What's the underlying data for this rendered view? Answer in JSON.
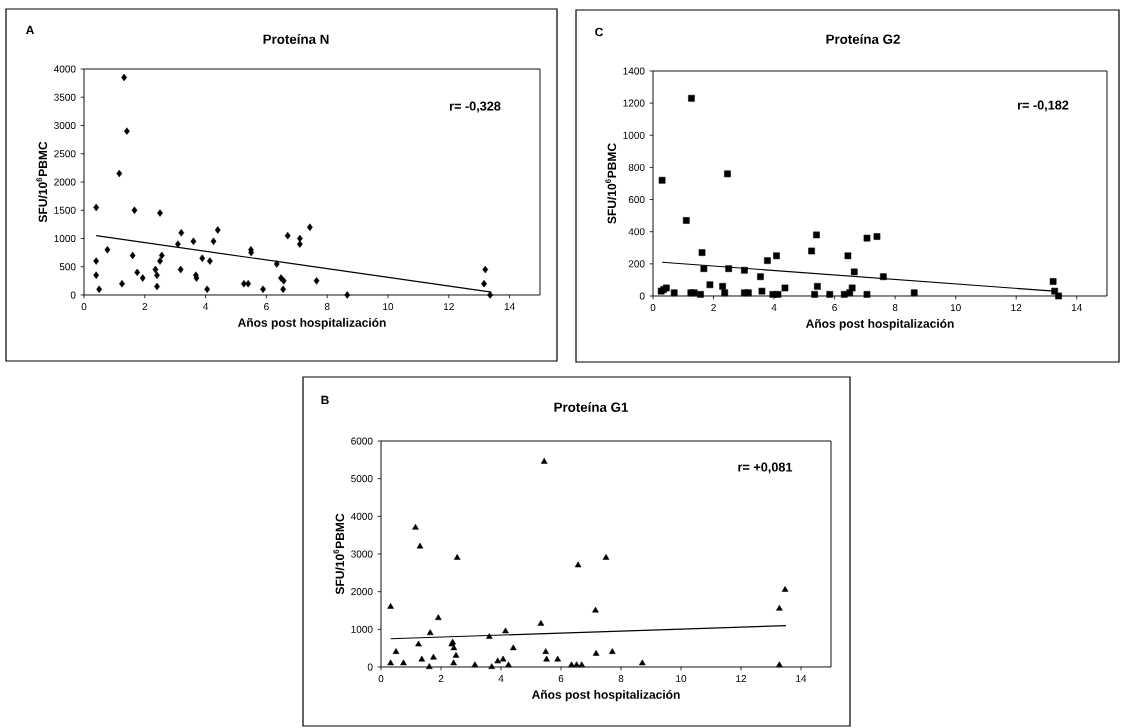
{
  "chart_data": [
    {
      "type": "scatter",
      "title": "Proteína N",
      "xlabel": "Años post hospitalización",
      "ylabel": "SFU/10$^{6}$PBMC",
      "annotations": [
        "A",
        "r= -0,328"
      ],
      "xlim": [
        0,
        15
      ],
      "ylim": [
        0,
        4000
      ],
      "xticks": [
        0,
        2,
        4,
        6,
        8,
        10,
        12,
        14
      ],
      "yticks": [
        0,
        500,
        1000,
        1500,
        2000,
        2500,
        3000,
        3500,
        4000
      ],
      "series": [
        {
          "marker": "diamond",
          "color": "#000000",
          "x": [
            0.4,
            0.4,
            0.4,
            0.5,
            0.77,
            1.25,
            1.16,
            1.32,
            1.41,
            1.66,
            1.6,
            1.75,
            1.93,
            2.35,
            2.4,
            2.4,
            2.5,
            2.5,
            2.56,
            3.09,
            3.2,
            3.18,
            3.6,
            3.68,
            3.7,
            3.89,
            4.14,
            4.05,
            4.26,
            4.4,
            5.26,
            5.4,
            5.49,
            5.5,
            5.89,
            6.34,
            6.48,
            6.57,
            6.55,
            6.7,
            7.1,
            7.1,
            7.43,
            7.65,
            8.66,
            13.2,
            13.16,
            13.36
          ],
          "values": [
            1550,
            600,
            350,
            100,
            800,
            200,
            2150,
            3850,
            2900,
            1500,
            700,
            400,
            300,
            450,
            350,
            150,
            1450,
            600,
            700,
            900,
            1100,
            450,
            950,
            350,
            300,
            650,
            600,
            100,
            950,
            1150,
            200,
            200,
            800,
            750,
            100,
            550,
            300,
            250,
            100,
            1050,
            1000,
            900,
            1200,
            250,
            0,
            450,
            200,
            0
          ]
        },
        {
          "type": "line",
          "color": "#000000",
          "x": [
            0.4,
            13.4
          ],
          "values": [
            1050,
            50
          ]
        }
      ]
    },
    {
      "type": "scatter",
      "title": "Proteína G2",
      "xlabel": "Años post hospitalización",
      "ylabel": "SFU/10$^{6}$PBMC",
      "annotations": [
        "C",
        "r= -0,182"
      ],
      "xlim": [
        0,
        15
      ],
      "ylim": [
        0,
        1400
      ],
      "xticks": [
        0,
        2,
        4,
        6,
        8,
        10,
        12,
        14
      ],
      "yticks": [
        0,
        200,
        400,
        600,
        800,
        1000,
        1200,
        1400
      ],
      "series": [
        {
          "marker": "square",
          "color": "#000000",
          "x": [
            0.3,
            0.27,
            0.35,
            0.44,
            0.7,
            1.27,
            1.1,
            1.25,
            1.36,
            1.62,
            1.68,
            1.57,
            1.88,
            2.3,
            2.37,
            2.46,
            2.5,
            3.02,
            3.02,
            3.15,
            3.55,
            3.6,
            3.78,
            4.08,
            3.96,
            4.13,
            4.36,
            5.24,
            5.4,
            5.43,
            5.34,
            5.84,
            6.44,
            6.32,
            6.5,
            6.58,
            6.65,
            7.07,
            7.4,
            7.07,
            7.61,
            8.63,
            13.22,
            13.27,
            13.4
          ],
          "values": [
            720,
            30,
            40,
            50,
            20,
            1230,
            470,
            20,
            20,
            270,
            170,
            10,
            70,
            60,
            20,
            760,
            170,
            160,
            20,
            20,
            120,
            30,
            220,
            250,
            10,
            10,
            50,
            280,
            380,
            60,
            10,
            10,
            250,
            10,
            20,
            50,
            150,
            360,
            370,
            10,
            120,
            20,
            90,
            30,
            0
          ]
        },
        {
          "type": "line",
          "color": "#000000",
          "x": [
            0.3,
            13.25
          ],
          "values": [
            210,
            30
          ]
        }
      ]
    },
    {
      "type": "scatter",
      "title": "Proteína G1",
      "xlabel": "Años post hospitalización",
      "ylabel": "SFU/10$^{6}$PBMC",
      "annotations": [
        "B",
        "r= +0,081"
      ],
      "xlim": [
        0,
        15
      ],
      "ylim": [
        0,
        6000
      ],
      "xticks": [
        0,
        2,
        4,
        6,
        8,
        10,
        12,
        14
      ],
      "yticks": [
        0,
        1000,
        2000,
        3000,
        4000,
        5000,
        6000
      ],
      "series": [
        {
          "marker": "triangle",
          "color": "#000000",
          "x": [
            0.32,
            1.91,
            1.64,
            1.25,
            0.5,
            0.32,
            0.75,
            1.36,
            1.75,
            1.61,
            2.36,
            2.43,
            2.39,
            2.5,
            2.42,
            3.13,
            3.61,
            3.69,
            3.89,
            4.07,
            4.15,
            4.25,
            4.41,
            5.33,
            5.49,
            5.52,
            5.89,
            6.35,
            6.52,
            6.69,
            7.15,
            7.17,
            7.71,
            8.71,
            13.28,
            13.47,
            13.28,
            5.44,
            1.15,
            1.3,
            2.54,
            6.57,
            7.5
          ],
          "values": [
            1600,
            1300,
            900,
            600,
            400,
            100,
            100,
            200,
            250,
            0,
            600,
            500,
            650,
            300,
            100,
            50,
            800,
            0,
            150,
            200,
            950,
            50,
            500,
            1150,
            400,
            200,
            200,
            50,
            50,
            50,
            1500,
            350,
            400,
            100,
            1550,
            2050,
            50,
            5450,
            3700,
            3200,
            2900,
            2700,
            2900
          ]
        },
        {
          "type": "line",
          "color": "#000000",
          "x": [
            0.32,
            13.5
          ],
          "values": [
            750,
            1100
          ]
        }
      ]
    }
  ]
}
